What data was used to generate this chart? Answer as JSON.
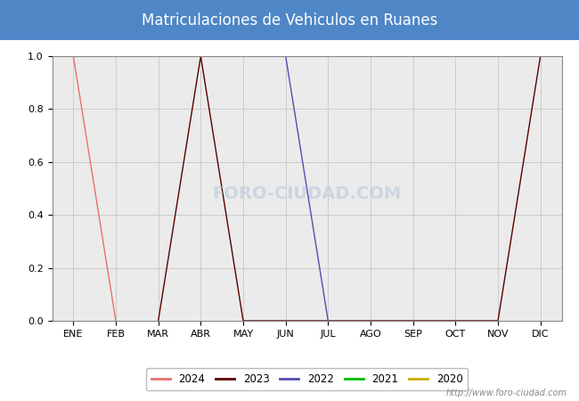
{
  "title": "Matriculaciones de Vehiculos en Ruanes",
  "title_bg_color": "#4f86c6",
  "title_text_color": "white",
  "months": [
    "ENE",
    "FEB",
    "MAR",
    "ABR",
    "MAY",
    "JUN",
    "JUL",
    "AGO",
    "SEP",
    "OCT",
    "NOV",
    "DIC"
  ],
  "month_indices": [
    1,
    2,
    3,
    4,
    5,
    6,
    7,
    8,
    9,
    10,
    11,
    12
  ],
  "series": {
    "2024": {
      "color": "#e87070",
      "data": [
        [
          0,
          1.0
        ],
        [
          1,
          0.0
        ]
      ]
    },
    "2023": {
      "color": "#5a0000",
      "data": [
        [
          2,
          0.0
        ],
        [
          3,
          1.0
        ],
        [
          4,
          0.0
        ],
        [
          10,
          0.0
        ],
        [
          11,
          1.0
        ]
      ]
    },
    "2022": {
      "color": "#5050b0",
      "data": [
        [
          5,
          1.0
        ],
        [
          6,
          0.0
        ]
      ]
    },
    "2021": {
      "color": "#00bb00",
      "data": []
    },
    "2020": {
      "color": "#ccaa00",
      "data": []
    }
  },
  "legend_order": [
    "2024",
    "2023",
    "2022",
    "2021",
    "2020"
  ],
  "ylim": [
    0.0,
    1.0
  ],
  "yticks": [
    0.0,
    0.2,
    0.4,
    0.6,
    0.8,
    1.0
  ],
  "grid_color": "#cccccc",
  "plot_bg_color": "#ebebeb",
  "fig_bg_color": "#ffffff",
  "watermark_plot": "FORO-CIUDAD.COM",
  "watermark_url": "http://www.foro-ciudad.com"
}
